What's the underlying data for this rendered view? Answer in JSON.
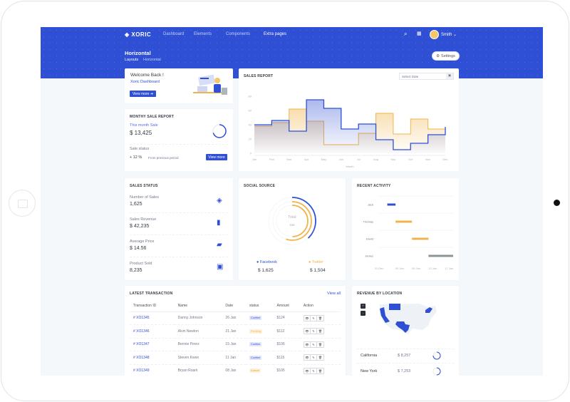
{
  "brand": "XORIC",
  "nav": [
    {
      "label": "Dashboard"
    },
    {
      "label": "Elements"
    },
    {
      "label": "Components"
    },
    {
      "label": "Extra pages"
    }
  ],
  "user": {
    "name": "Smith"
  },
  "page": {
    "title": "Horizontal",
    "breadcrumb": [
      "Layouts",
      "Horizontal"
    ],
    "settings_label": "Settings"
  },
  "welcome": {
    "title": "Welcome Back !",
    "subtitle": "Xoric Dashboard",
    "button": "View more"
  },
  "monthly": {
    "title": "MONTHY SALE REPORT",
    "label": "This month Sale",
    "value": "$ 13,425",
    "status_label": "Sale status",
    "change": "+ 12 %",
    "change_note": "From previous period",
    "button": "View more",
    "progress": 0.7
  },
  "sales_report": {
    "title": "SALES REPORT",
    "date_placeholder": "Select Date"
  },
  "chart_data": [
    {
      "type": "area",
      "title": "SALES REPORT",
      "xlabel": "Month",
      "ylabel": "",
      "step": true,
      "categories": [
        "Jan",
        "Feb",
        "Mar",
        "Apr",
        "May",
        "Jun",
        "Jul",
        "Aug",
        "Sep",
        "Oct",
        "Nov",
        "Dec"
      ],
      "ylim": [
        0,
        80
      ],
      "yticks": [
        0,
        20,
        40,
        60,
        80
      ],
      "grid": false,
      "series": [
        {
          "color": "#2f50d4",
          "values": [
            40,
            46,
            31,
            75,
            63,
            34,
            41,
            19,
            5,
            14,
            26,
            37
          ]
        },
        {
          "color": "#f1b44c",
          "values": [
            38,
            43,
            62,
            45,
            12,
            12,
            28,
            56,
            27,
            48,
            34,
            27
          ]
        }
      ]
    },
    {
      "type": "pie",
      "title": "SOCIAL SOURCE",
      "center_label": "Total",
      "center_value": "166",
      "series": [
        {
          "name": "Facebook",
          "value": "$ 1,625",
          "color": "#2f50d4",
          "fraction": 0.38
        },
        {
          "name": "Twitter",
          "value": "$ 1,504",
          "color": "#f1b44c",
          "fraction": 0.55
        }
      ]
    },
    {
      "type": "bar",
      "title": "RECENT ACTIVITY",
      "orientation": "horizontal-range",
      "categories": [
        "Jack",
        "Thomas",
        "David",
        "James"
      ],
      "xticks": [
        "31 Dec",
        "05 Jan",
        "09 Jan",
        "13 Jan",
        "17 Jan"
      ],
      "ranges": [
        {
          "start": "2020-01-02",
          "end": "2020-01-04",
          "color": "#2f50d4"
        },
        {
          "start": "2020-01-04",
          "end": "2020-01-08",
          "color": "#f1b44c"
        },
        {
          "start": "2020-01-08",
          "end": "2020-01-12",
          "color": "#f1b44c"
        },
        {
          "start": "2020-01-12",
          "end": "2020-01-18",
          "color": "#8d9498"
        }
      ]
    }
  ],
  "sales_status": {
    "title": "SALES STATUS",
    "items": [
      {
        "label": "Number of Sales",
        "value": "1,625",
        "icon": "layers-icon"
      },
      {
        "label": "Sales Revenue",
        "value": "$ 42,235",
        "icon": "bar-chart-icon"
      },
      {
        "label": "Average Price",
        "value": "$ 14.56",
        "icon": "ticket-icon"
      },
      {
        "label": "Product Sold",
        "value": "8,235",
        "icon": "box-icon"
      }
    ]
  },
  "transactions": {
    "title": "LATEST TRANSACTION",
    "view_all": "View all",
    "headers": [
      "Transaction ID",
      "Name",
      "Date",
      "status",
      "Amount",
      "Action"
    ],
    "rows": [
      {
        "id": "# XO1345",
        "name": "Danny Johnson",
        "date": "26 Jan",
        "status": "Confirm",
        "amount": "$124"
      },
      {
        "id": "# XO1346",
        "name": "Alvin Newton",
        "date": "21 Jan",
        "status": "Pending",
        "amount": "$112"
      },
      {
        "id": "# XO1347",
        "name": "Bennie Perez",
        "date": "15 Jan",
        "status": "Confirm",
        "amount": "$106"
      },
      {
        "id": "# XO1348",
        "name": "Steven Kwon",
        "date": "11 Jan",
        "status": "Confirm",
        "amount": "$115"
      },
      {
        "id": "# XO1349",
        "name": "Bryan Roark",
        "date": "08 Jan",
        "status": "Cancel",
        "amount": "$105"
      }
    ]
  },
  "location": {
    "title": "REVENUE BY LOCATION",
    "zoom_in": "+",
    "zoom_out": "-",
    "rows": [
      {
        "state": "California",
        "value": "$ 8,257",
        "progress": 0.75
      },
      {
        "state": "New York",
        "value": "$ 7,253",
        "progress": 0.5
      }
    ]
  },
  "colors": {
    "primary": "#2f50d4",
    "warning": "#f1b44c",
    "background": "#f4f8fb"
  }
}
